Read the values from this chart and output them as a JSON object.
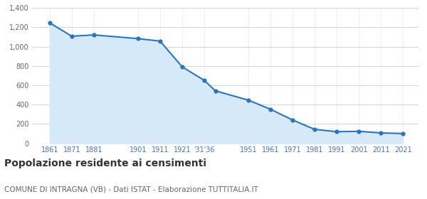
{
  "years": [
    1861,
    1871,
    1881,
    1901,
    1911,
    1921,
    1931,
    1936,
    1951,
    1961,
    1971,
    1981,
    1991,
    2001,
    2011,
    2021
  ],
  "population": [
    1245,
    1108,
    1121,
    1083,
    1057,
    791,
    651,
    543,
    446,
    352,
    241,
    144,
    120,
    124,
    107,
    101
  ],
  "line_color": "#2E75B6",
  "fill_color": "#D6E9F8",
  "marker_color": "#2E75B6",
  "bg_color": "#FFFFFF",
  "grid_color": "#CCCCCC",
  "title": "Popolazione residente ai censimenti",
  "subtitle": "COMUNE DI INTRAGNA (VB) - Dati ISTAT - Elaborazione TUTTITALIA.IT",
  "ylim": [
    0,
    1400
  ],
  "yticks": [
    0,
    200,
    400,
    600,
    800,
    1000,
    1200,
    1400
  ],
  "title_fontsize": 10,
  "subtitle_fontsize": 7.5,
  "axis_label_color": "#4472C4",
  "ytick_label_color": "#666666",
  "xtick_positions": [
    1861,
    1871,
    1881,
    1901,
    1911,
    1921,
    1931,
    1951,
    1961,
    1971,
    1981,
    1991,
    2001,
    2011,
    2021
  ],
  "xtick_labels": [
    "1861",
    "1871",
    "1881",
    "1901",
    "1911",
    "1921",
    "'31'36",
    "1951",
    "1961",
    "1971",
    "1981",
    "1991",
    "2001",
    "2011",
    "2021"
  ],
  "xlim": [
    1853,
    2028
  ]
}
